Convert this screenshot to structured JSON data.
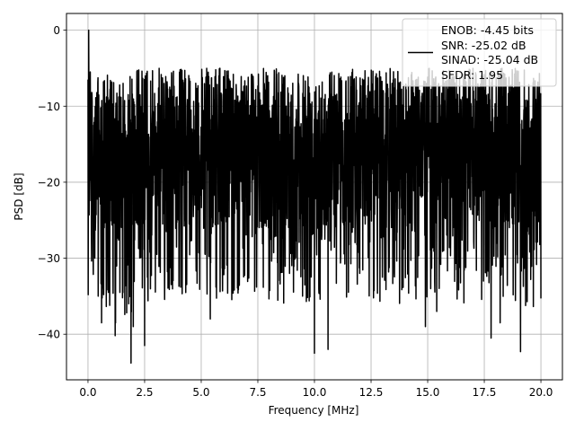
{
  "chart_data": {
    "type": "line",
    "title": "",
    "xlabel": "Frequency [MHz]",
    "ylabel": "PSD [dB]",
    "xlim": [
      -0.95,
      20.95
    ],
    "ylim": [
      -46,
      2.2
    ],
    "x_ticks": [
      0.0,
      2.5,
      5.0,
      7.5,
      10.0,
      12.5,
      15.0,
      17.5,
      20.0
    ],
    "x_tick_labels": [
      "0.0",
      "2.5",
      "5.0",
      "7.5",
      "10.0",
      "12.5",
      "15.0",
      "17.5",
      "20.0"
    ],
    "y_ticks": [
      0,
      -10,
      -20,
      -30,
      -40
    ],
    "y_tick_labels": [
      "0",
      "−10",
      "−20",
      "−30",
      "−40"
    ],
    "grid": true,
    "legend_position": "top-right",
    "legend_lines": [
      "ENOB: -4.45 bits",
      "SNR: -25.02 dB",
      "SINAD: -25.04 dB",
      "SFDR: 1.95"
    ],
    "series": [
      {
        "color": "#000000",
        "x_range": [
          0,
          20
        ],
        "points_shown": "dense noise spectrum, 2000+ points",
        "sample": [
          [
            0.0,
            -6.5
          ],
          [
            0.03,
            0.0
          ],
          [
            0.06,
            -13.5
          ],
          [
            0.1,
            -5.5
          ],
          [
            0.15,
            -27
          ],
          [
            0.2,
            -12.5
          ],
          [
            0.3,
            -30
          ],
          [
            0.4,
            -11
          ],
          [
            0.45,
            -35
          ],
          [
            0.5,
            -16
          ],
          [
            0.6,
            -38.5
          ],
          [
            0.8,
            -21
          ],
          [
            1.2,
            -40.2
          ],
          [
            1.6,
            -22
          ],
          [
            1.9,
            -43.8
          ],
          [
            2.0,
            -39
          ],
          [
            2.3,
            -8.5
          ],
          [
            2.5,
            -41.5
          ],
          [
            3.5,
            -7.5
          ],
          [
            5.4,
            -38
          ],
          [
            6.1,
            -8
          ],
          [
            8.9,
            -32
          ],
          [
            10.0,
            -42.5
          ],
          [
            10.6,
            -42
          ],
          [
            12.0,
            -32
          ],
          [
            14.9,
            -39
          ],
          [
            15.4,
            -37
          ],
          [
            17.8,
            -40.5
          ],
          [
            18.2,
            -38.5
          ],
          [
            19.1,
            -42.3
          ],
          [
            20.0,
            -35.3
          ]
        ]
      }
    ]
  }
}
